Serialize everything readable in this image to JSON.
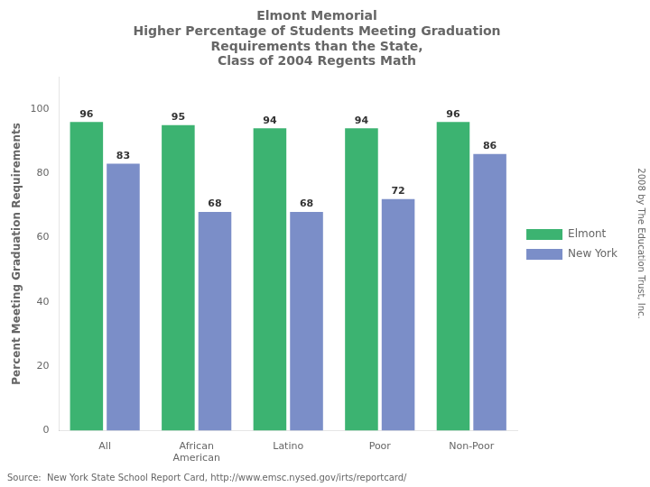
{
  "chart_data": {
    "type": "bar",
    "title": "Elmont Memorial\nHigher Percentage of Students Meeting Graduation\nRequirements than the State,\nClass of 2004 Regents Math",
    "categories": [
      "All",
      "African\nAmerican",
      "Latino",
      "Poor",
      "Non-Poor"
    ],
    "series": [
      {
        "name": "Elmont",
        "color": "#3CB371",
        "values": [
          96,
          95,
          94,
          94,
          96
        ]
      },
      {
        "name": "New York",
        "color": "#7B8EC8",
        "values": [
          83,
          68,
          68,
          72,
          86
        ]
      }
    ],
    "ylabel": "Percent Meeting Graduation Requirements",
    "ylim": [
      0,
      110
    ],
    "yticks": [
      0,
      20,
      40,
      60,
      80,
      100
    ],
    "grid": false,
    "legend": "right",
    "data_labels": true,
    "annotations": [
      "Source:  New York State School Report Card, http://www.emsc.nysed.gov/irts/reportcard/",
      "2008 by The Education Trust, Inc."
    ]
  }
}
